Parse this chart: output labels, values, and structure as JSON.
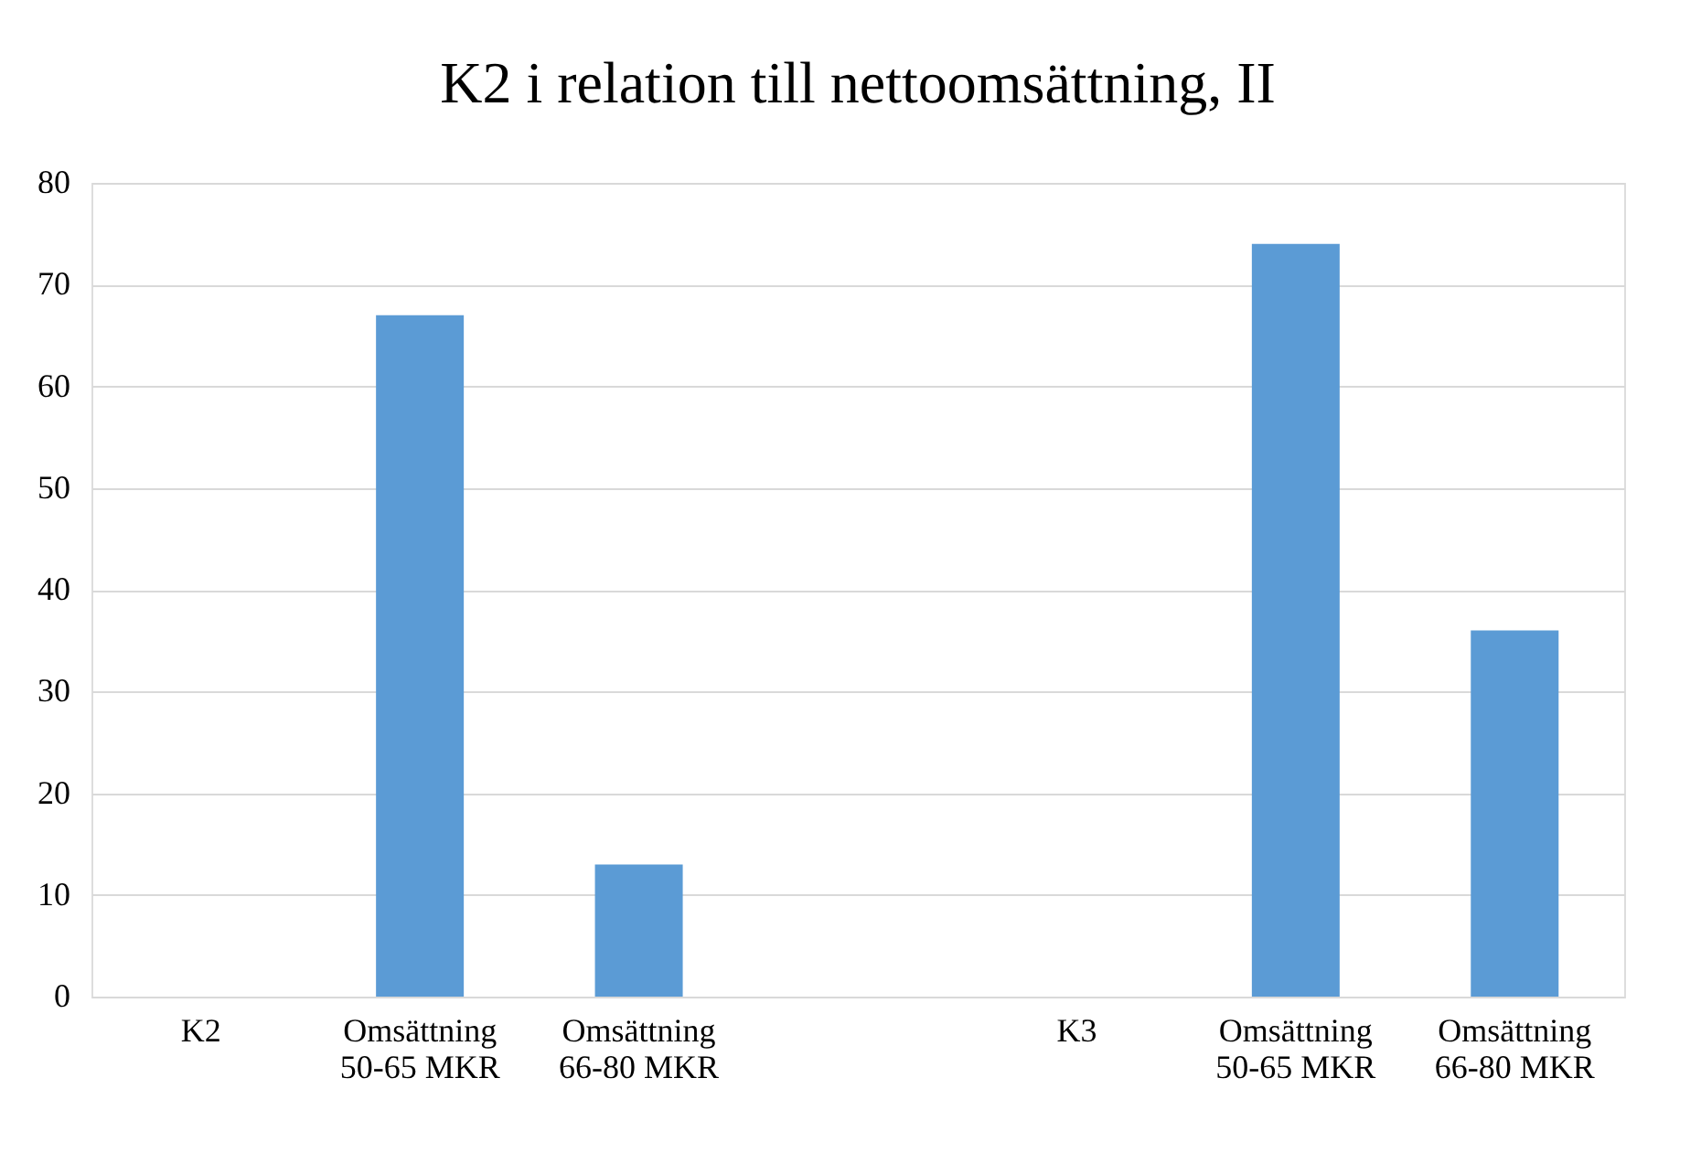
{
  "chart_data": {
    "type": "bar",
    "title": "K2 i relation till nettoomsättning, II",
    "categories": [
      "K2",
      "Omsättning 50-65 MKR",
      "Omsättning 66-80 MKR",
      null,
      "K3",
      "Omsättning 50-65 MKR",
      "Omsättning 66-80 MKR"
    ],
    "values": [
      null,
      67,
      13,
      null,
      null,
      74,
      36
    ],
    "color": "#5b9bd5",
    "ylim": [
      0,
      80
    ],
    "yticks": [
      0,
      10,
      20,
      30,
      40,
      50,
      60,
      70,
      80
    ],
    "grid": "y"
  }
}
